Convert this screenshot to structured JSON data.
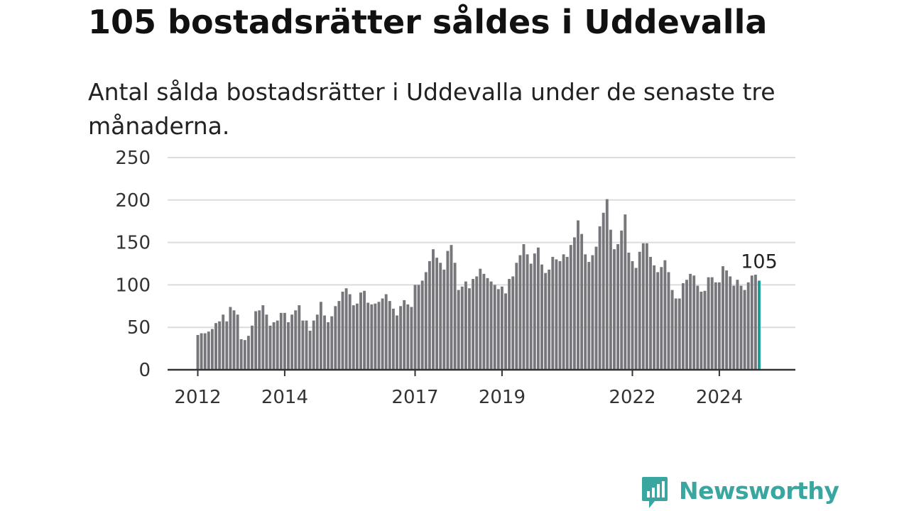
{
  "header": {
    "title": "105 bostadsrätter såldes i Uddevalla",
    "subtitle": "Antal sålda bostadsrätter i Uddevalla under de senaste tre månaderna."
  },
  "branding": {
    "logo_text": "Newsworthy",
    "logo_icon": "newsworthy-bar-chart-bubble-icon",
    "logo_color": "#3aa6a0"
  },
  "chart_data": {
    "type": "bar",
    "ylim": [
      0,
      250
    ],
    "yticks": [
      0,
      50,
      100,
      150,
      200,
      250
    ],
    "xticks": [
      {
        "label": "2012",
        "index": 0
      },
      {
        "label": "2014",
        "index": 24
      },
      {
        "label": "2017",
        "index": 60
      },
      {
        "label": "2019",
        "index": 84
      },
      {
        "label": "2022",
        "index": 120
      },
      {
        "label": "2024",
        "index": 144
      }
    ],
    "grid": true,
    "bar_color": "#77767b",
    "highlight_color": "#1a9e98",
    "highlight_label": "105",
    "values": [
      41,
      43,
      43,
      45,
      48,
      55,
      57,
      65,
      57,
      74,
      70,
      65,
      36,
      35,
      40,
      52,
      69,
      70,
      76,
      65,
      52,
      56,
      58,
      67,
      67,
      56,
      65,
      70,
      76,
      58,
      58,
      46,
      58,
      65,
      80,
      64,
      56,
      63,
      75,
      81,
      92,
      96,
      89,
      76,
      78,
      91,
      93,
      79,
      77,
      78,
      80,
      84,
      89,
      81,
      72,
      64,
      75,
      82,
      77,
      74,
      100,
      100,
      105,
      115,
      128,
      142,
      132,
      126,
      118,
      140,
      147,
      126,
      94,
      98,
      104,
      96,
      107,
      110,
      119,
      113,
      108,
      104,
      100,
      95,
      98,
      90,
      107,
      110,
      126,
      135,
      148,
      136,
      125,
      137,
      144,
      124,
      114,
      118,
      133,
      130,
      128,
      136,
      133,
      147,
      156,
      176,
      160,
      136,
      127,
      135,
      145,
      169,
      185,
      201,
      165,
      142,
      148,
      164,
      183,
      138,
      128,
      120,
      139,
      149,
      149,
      133,
      123,
      115,
      121,
      129,
      115,
      94,
      84,
      84,
      102,
      106,
      113,
      111,
      99,
      92,
      93,
      109,
      109,
      103,
      103,
      122,
      117,
      110,
      99,
      106,
      99,
      94,
      103,
      111,
      112,
      105
    ]
  }
}
